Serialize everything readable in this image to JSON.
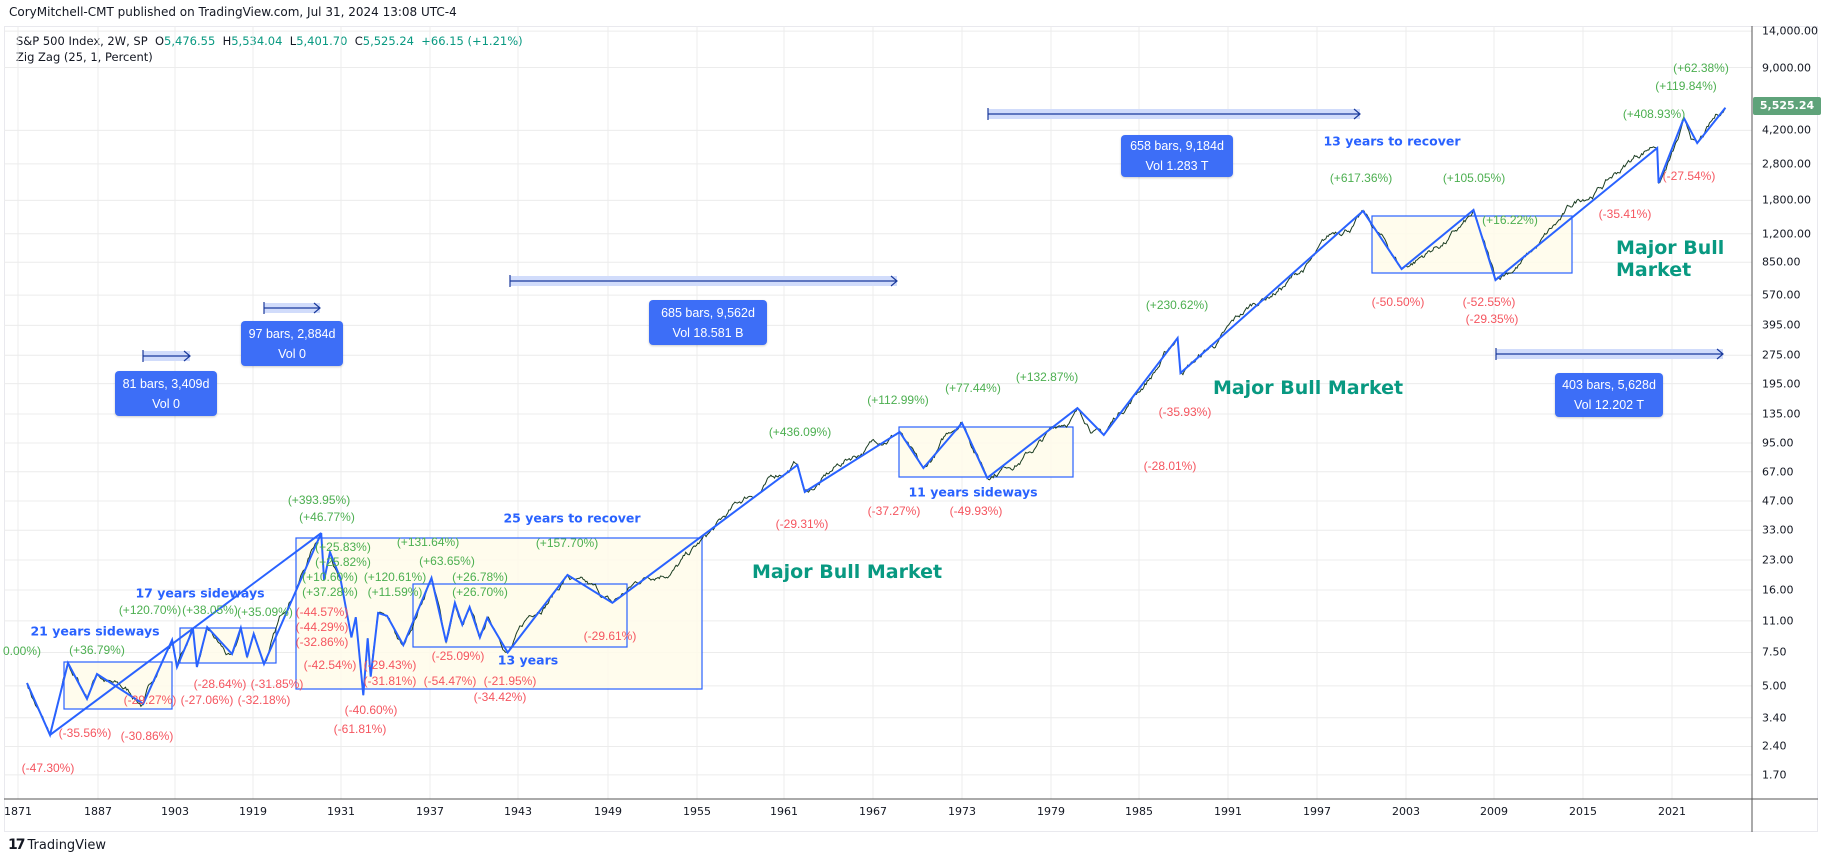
{
  "header": {
    "publisher": "CoryMitchell-CMT published on TradingView.com, Jul 31, 2024 13:08 UTC-4"
  },
  "legend": {
    "symbol": "S&P 500 Index, 2W, SP",
    "open_label": "O",
    "open": "5,476.55",
    "high_label": "H",
    "high": "5,534.04",
    "low_label": "L",
    "low": "5,401.70",
    "close_label": "C",
    "close": "5,525.24",
    "change": "+66.15 (+1.21%)",
    "indicator": "Zig Zag (25, 1, Percent)"
  },
  "footer": {
    "brand": "TradingView",
    "logo_icon": "tradingview-logo-icon"
  },
  "colors": {
    "up_label": "#4caf50",
    "down_label": "#f23645",
    "zigzag": "#2962ff",
    "annotation_blue": "#2962ff",
    "bull_text": "#089981",
    "box_fill": "#fffbea",
    "measure_box": "#3d6ef7",
    "price_tag": "#5fa37a"
  },
  "chart_data": {
    "type": "line",
    "title": "",
    "y_scale": "log",
    "grid": true,
    "last_price": "5,525.24",
    "y_ticks": [
      {
        "value": 14000,
        "label": "14,000.00"
      },
      {
        "value": 9000,
        "label": "9,000.00"
      },
      {
        "value": 4200,
        "label": "4,200.00"
      },
      {
        "value": 2800,
        "label": "2,800.00"
      },
      {
        "value": 1800,
        "label": "1,800.00"
      },
      {
        "value": 1200,
        "label": "1,200.00"
      },
      {
        "value": 850,
        "label": "850.00"
      },
      {
        "value": 570,
        "label": "570.00"
      },
      {
        "value": 395,
        "label": "395.00"
      },
      {
        "value": 275,
        "label": "275.00"
      },
      {
        "value": 195,
        "label": "195.00"
      },
      {
        "value": 135,
        "label": "135.00"
      },
      {
        "value": 95,
        "label": "95.00"
      },
      {
        "value": 67,
        "label": "67.00"
      },
      {
        "value": 47,
        "label": "47.00"
      },
      {
        "value": 33,
        "label": "33.00"
      },
      {
        "value": 23,
        "label": "23.00"
      },
      {
        "value": 16,
        "label": "16.00"
      },
      {
        "value": 11,
        "label": "11.00"
      },
      {
        "value": 7.5,
        "label": "7.50"
      },
      {
        "value": 5,
        "label": "5.00"
      },
      {
        "value": 3.4,
        "label": "3.40"
      },
      {
        "value": 2.4,
        "label": "2.40"
      },
      {
        "value": 1.7,
        "label": "1.70"
      }
    ],
    "x_ticks": [
      "1871",
      "1887",
      "1903",
      "1919",
      "1931",
      "1937",
      "1943",
      "1949",
      "1955",
      "1961",
      "1967",
      "1973",
      "1979",
      "1985",
      "1991",
      "1997",
      "2003",
      "2009",
      "2015",
      "2021"
    ],
    "zigzag": [
      [
        1872.8,
        5.18
      ],
      [
        1877.4,
        2.76
      ],
      [
        1881.0,
        6.6
      ],
      [
        1884.8,
        4.27
      ],
      [
        1886.8,
        5.78
      ],
      [
        1896.4,
        4.02
      ],
      [
        1902.4,
        8.72
      ],
      [
        1903.4,
        6.29
      ],
      [
        1906.7,
        9.96
      ],
      [
        1907.5,
        6.29
      ],
      [
        1909.6,
        10.2
      ],
      [
        1914.7,
        7.36
      ],
      [
        1916.5,
        10.1
      ],
      [
        1917.8,
        7.1
      ],
      [
        1919.1,
        9.39
      ],
      [
        1920.5,
        6.52
      ],
      [
        1928.3,
        31.9
      ],
      [
        1928.7,
        18.0
      ],
      [
        1929.5,
        25.3
      ],
      [
        1930.9,
        18.5
      ],
      [
        1931.7,
        9.0
      ],
      [
        1932.0,
        11.5
      ],
      [
        1932.5,
        4.47
      ],
      [
        1932.8,
        8.9
      ],
      [
        1933.0,
        5.6
      ],
      [
        1933.5,
        12.1
      ],
      [
        1934.1,
        11.7
      ],
      [
        1935.2,
        8.2
      ],
      [
        1937.1,
        18.5
      ],
      [
        1938.1,
        8.5
      ],
      [
        1938.7,
        13.7
      ],
      [
        1939.2,
        10.5
      ],
      [
        1939.7,
        13.0
      ],
      [
        1940.4,
        9.0
      ],
      [
        1940.9,
        11.4
      ],
      [
        1942.3,
        7.5
      ],
      [
        1946.3,
        19.2
      ],
      [
        1949.3,
        13.7
      ],
      [
        1961.9,
        72.8
      ],
      [
        1962.4,
        52.5
      ],
      [
        1968.8,
        108.6
      ],
      [
        1970.4,
        70.2
      ],
      [
        1973.0,
        121
      ],
      [
        1974.7,
        62.2
      ],
      [
        1980.8,
        145
      ],
      [
        1982.6,
        104.7
      ],
      [
        1987.6,
        339
      ],
      [
        1987.8,
        222
      ],
      [
        2000.1,
        1581
      ],
      [
        2002.7,
        783
      ],
      [
        2007.6,
        1600
      ],
      [
        2009.1,
        685
      ],
      [
        2020.0,
        3392
      ],
      [
        2020.1,
        2221
      ],
      [
        2021.8,
        4881
      ],
      [
        2022.7,
        3600
      ],
      [
        2024.6,
        5525.24
      ]
    ],
    "trendlines": [
      [
        [
          1877.4,
          2.76
        ],
        [
          1928.3,
          31.9
        ]
      ]
    ],
    "zigzag_labels": [
      {
        "text": "(+62.38%)",
        "dir": "up"
      },
      {
        "text": "(+119.84%)",
        "dir": "up"
      },
      {
        "text": "(+408.93%)",
        "dir": "up"
      },
      {
        "text": "(+105.05%)",
        "dir": "up"
      },
      {
        "text": "(+617.36%)",
        "dir": "up"
      },
      {
        "text": "(+16.22%)",
        "dir": "up"
      },
      {
        "text": "(+230.62%)",
        "dir": "up"
      },
      {
        "text": "(+132.87%)",
        "dir": "up"
      },
      {
        "text": "(+112.99%)",
        "dir": "up"
      },
      {
        "text": "(+77.44%)",
        "dir": "up"
      },
      {
        "text": "(+436.09%)",
        "dir": "up"
      },
      {
        "text": "(+393.95%)",
        "dir": "up"
      },
      {
        "text": "(+46.77%)",
        "dir": "up"
      },
      {
        "text": "(+25.83%)",
        "dir": "up"
      },
      {
        "text": "(+25.82%)",
        "dir": "up"
      },
      {
        "text": "(+10.60%)",
        "dir": "up"
      },
      {
        "text": "(+120.61%)",
        "dir": "up"
      },
      {
        "text": "(+37.28%)",
        "dir": "up"
      },
      {
        "text": "(+11.59%)",
        "dir": "up"
      },
      {
        "text": "(+131.64%)",
        "dir": "up"
      },
      {
        "text": "(+63.65%)",
        "dir": "up"
      },
      {
        "text": "(+26.78%)",
        "dir": "up"
      },
      {
        "text": "(+26.70%)",
        "dir": "up"
      },
      {
        "text": "(+157.70%)",
        "dir": "up"
      },
      {
        "text": "0.00%)",
        "dir": "up"
      },
      {
        "text": "(+36.79%)",
        "dir": "up"
      },
      {
        "text": "(+120.70%)",
        "dir": "up"
      },
      {
        "text": "(+38.05%)",
        "dir": "up"
      },
      {
        "text": "(+35.09%)",
        "dir": "up"
      },
      {
        "text": "(-27.54%)",
        "dir": "down"
      },
      {
        "text": "(-35.41%)",
        "dir": "down"
      },
      {
        "text": "(-50.50%)",
        "dir": "down"
      },
      {
        "text": "(-52.55%)",
        "dir": "down"
      },
      {
        "text": "(-29.35%)",
        "dir": "down"
      },
      {
        "text": "(-35.93%)",
        "dir": "down"
      },
      {
        "text": "(-28.01%)",
        "dir": "down"
      },
      {
        "text": "(-29.31%)",
        "dir": "down"
      },
      {
        "text": "(-37.27%)",
        "dir": "down"
      },
      {
        "text": "(-49.93%)",
        "dir": "down"
      },
      {
        "text": "(-44.57%)",
        "dir": "down"
      },
      {
        "text": "(-44.29%)",
        "dir": "down"
      },
      {
        "text": "(-32.86%)",
        "dir": "down"
      },
      {
        "text": "(-42.54%)",
        "dir": "down"
      },
      {
        "text": "(-29.43%)",
        "dir": "down"
      },
      {
        "text": "(-31.81%)",
        "dir": "down"
      },
      {
        "text": "(-40.60%)",
        "dir": "down"
      },
      {
        "text": "(-61.81%)",
        "dir": "down"
      },
      {
        "text": "(-25.09%)",
        "dir": "down"
      },
      {
        "text": "(-54.47%)",
        "dir": "down"
      },
      {
        "text": "(-21.95%)",
        "dir": "down"
      },
      {
        "text": "(-34.42%)",
        "dir": "down"
      },
      {
        "text": "(-29.61%)",
        "dir": "down"
      },
      {
        "text": "(-47.30%)",
        "dir": "down"
      },
      {
        "text": "(-35.56%)",
        "dir": "down"
      },
      {
        "text": "(-30.86%)",
        "dir": "down"
      },
      {
        "text": "(-29.27%)",
        "dir": "down"
      },
      {
        "text": "(-27.06%)",
        "dir": "down"
      },
      {
        "text": "(-28.64%)",
        "dir": "down"
      },
      {
        "text": "(-31.85%)",
        "dir": "down"
      },
      {
        "text": "(-32.18%)",
        "dir": "down"
      }
    ],
    "text_annotations": [
      {
        "text": "21 years sideways",
        "style": "blue"
      },
      {
        "text": "17 years sideways",
        "style": "blue"
      },
      {
        "text": "13 years",
        "style": "blue"
      },
      {
        "text": "25 years to recover",
        "style": "blue"
      },
      {
        "text": "11 years sideways",
        "style": "blue"
      },
      {
        "text": "13 years to recover",
        "style": "blue"
      },
      {
        "text": "Major Bull Market",
        "style": "bull"
      },
      {
        "text": "Major Bull Market",
        "style": "bull"
      },
      {
        "text": "Major Bull\nMarket",
        "style": "bull"
      }
    ],
    "measurements": [
      {
        "line1": "81 bars, 3,409d",
        "line2": "Vol 0"
      },
      {
        "line1": "97 bars, 2,884d",
        "line2": "Vol 0"
      },
      {
        "line1": "685 bars, 9,562d",
        "line2": "Vol 18.581 B"
      },
      {
        "line1": "658 bars, 9,184d",
        "line2": "Vol 1.283 T"
      },
      {
        "line1": "403 bars, 5,628d",
        "line2": "Vol 12.202 T"
      }
    ]
  }
}
